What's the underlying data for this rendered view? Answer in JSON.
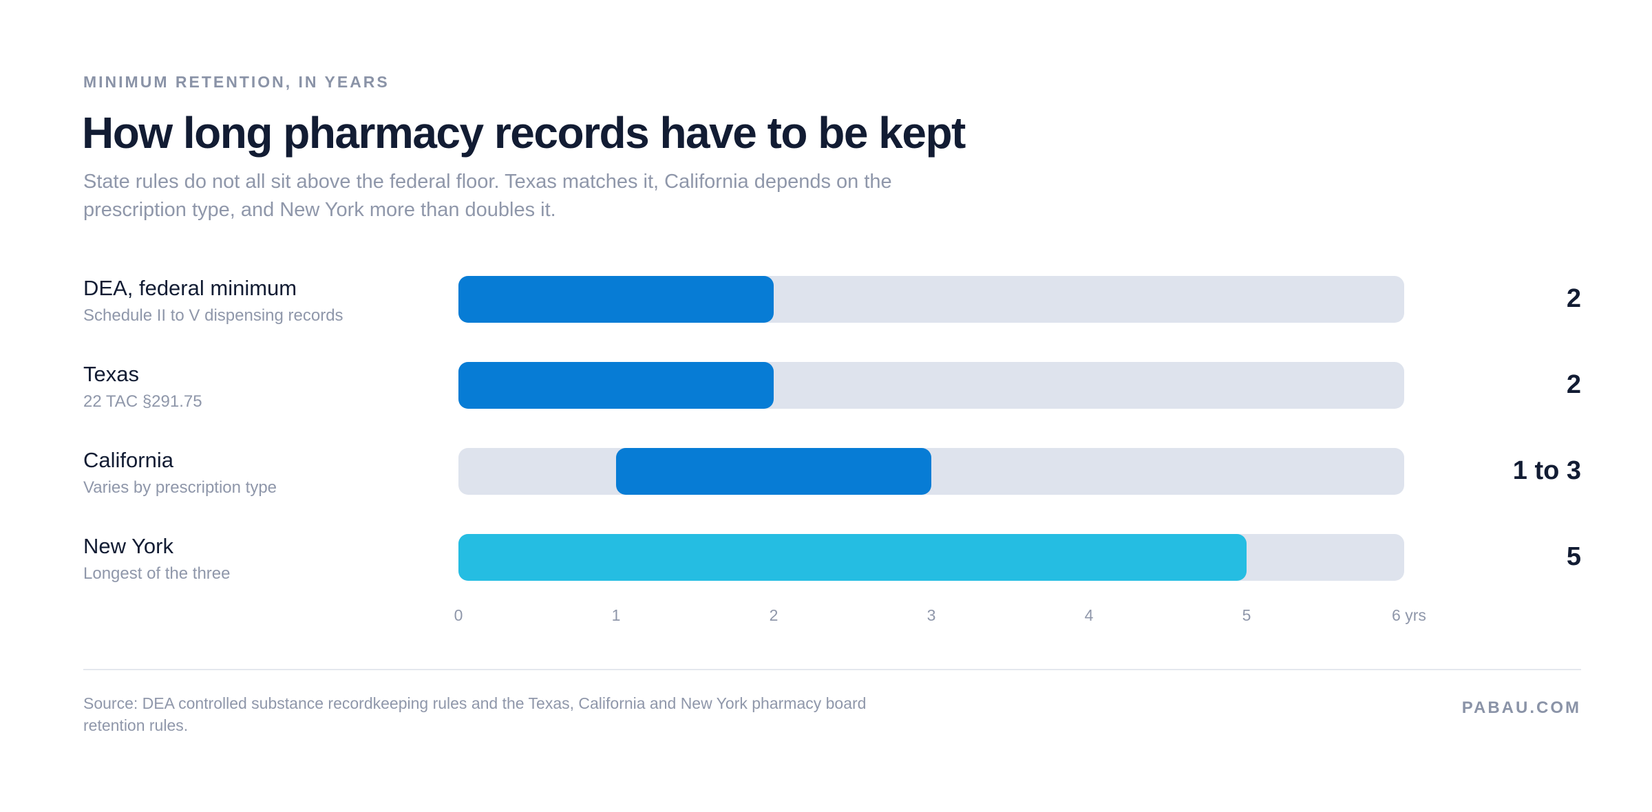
{
  "header": {
    "eyebrow": "MINIMUM RETENTION, IN YEARS",
    "title": "How long pharmacy records have to be kept",
    "subtitle": "State rules do not all sit above the federal floor. Texas matches it, California depends on the prescription type, and New York more than doubles it."
  },
  "colors": {
    "bar_primary": "#077cd5",
    "bar_highlight": "#25bde2",
    "track": "#dee3ed",
    "text_dark": "#121c33",
    "text_muted": "#8f97aa"
  },
  "chart_data": {
    "type": "bar",
    "orientation": "horizontal",
    "xlim": [
      0,
      6
    ],
    "xticks": [
      0,
      1,
      2,
      3,
      4,
      5,
      6
    ],
    "xtick_labels": [
      "0",
      "1",
      "2",
      "3",
      "4",
      "5",
      "6 yrs"
    ],
    "grid": false,
    "rows": [
      {
        "label": "DEA, federal minimum",
        "sublabel": "Schedule II to V dispensing records",
        "start": 0,
        "end": 2,
        "value_label": "2",
        "color": "#077cd5"
      },
      {
        "label": "Texas",
        "sublabel": "22 TAC §291.75",
        "start": 0,
        "end": 2,
        "value_label": "2",
        "color": "#077cd5"
      },
      {
        "label": "California",
        "sublabel": "Varies by prescription type",
        "start": 1,
        "end": 3,
        "value_label": "1 to 3",
        "color": "#077cd5"
      },
      {
        "label": "New York",
        "sublabel": "Longest of the three",
        "start": 0,
        "end": 5,
        "value_label": "5",
        "color": "#25bde2"
      }
    ]
  },
  "footer": {
    "source": "Source: DEA controlled substance recordkeeping rules and the Texas, California and New York pharmacy board retention rules.",
    "brand": "PABAU.COM"
  }
}
